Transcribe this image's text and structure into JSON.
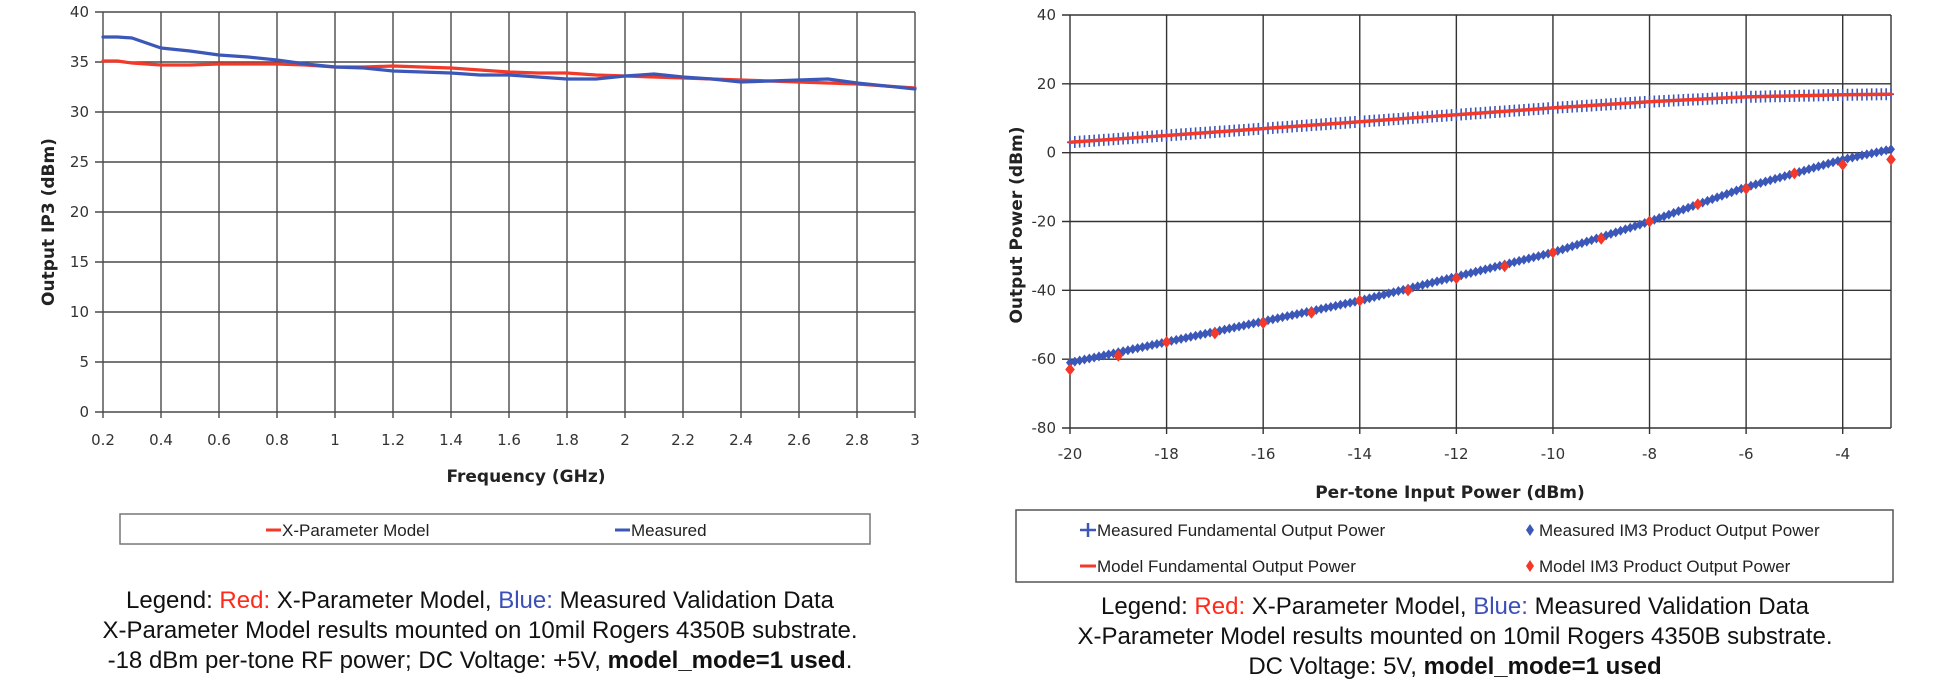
{
  "colors": {
    "model_red": "#f2392a",
    "measured_blue": "#3b57b8",
    "grid": "#444444"
  },
  "chart_data": [
    {
      "type": "line",
      "title": "",
      "xlabel": "Frequency (GHz)",
      "ylabel": "Output IP3 (dBm)",
      "xlim": [
        0.2,
        3
      ],
      "ylim": [
        0,
        40
      ],
      "grid": true,
      "xticks": [
        0.2,
        0.4,
        0.6,
        0.8,
        1,
        1.2,
        1.4,
        1.6,
        1.8,
        2,
        2.2,
        2.4,
        2.6,
        2.8,
        3
      ],
      "xtick_labels": [
        "0.2",
        "0.4",
        "0.6",
        "0.8",
        "1",
        "1.2",
        "1.4",
        "1.6",
        "1.8",
        "2",
        "2.2",
        "2.4",
        "2.6",
        "2.8",
        "3"
      ],
      "yticks": [
        0,
        5,
        10,
        15,
        20,
        25,
        30,
        35,
        40
      ],
      "ytick_labels": [
        "0",
        "5",
        "10",
        "15",
        "20",
        "25",
        "30",
        "35",
        "40"
      ],
      "legend_position": "bottom",
      "series": [
        {
          "name": "X-Parameter Model",
          "color": "#f2392a",
          "x": [
            0.2,
            0.25,
            0.3,
            0.4,
            0.5,
            0.6,
            0.7,
            0.8,
            0.9,
            1.0,
            1.1,
            1.2,
            1.3,
            1.4,
            1.5,
            1.6,
            1.7,
            1.8,
            1.9,
            2.0,
            2.1,
            2.2,
            2.3,
            2.4,
            2.5,
            2.6,
            2.7,
            2.8,
            2.9,
            3.0
          ],
          "y": [
            35.1,
            35.1,
            34.9,
            34.7,
            34.7,
            34.8,
            34.8,
            34.8,
            34.7,
            34.5,
            34.5,
            34.6,
            34.5,
            34.4,
            34.2,
            34.0,
            33.9,
            33.9,
            33.7,
            33.6,
            33.5,
            33.4,
            33.3,
            33.2,
            33.1,
            33.0,
            32.9,
            32.8,
            32.6,
            32.4
          ]
        },
        {
          "name": "Measured",
          "color": "#3b57b8",
          "x": [
            0.2,
            0.25,
            0.3,
            0.35,
            0.4,
            0.5,
            0.6,
            0.7,
            0.8,
            0.9,
            1.0,
            1.1,
            1.2,
            1.3,
            1.4,
            1.5,
            1.6,
            1.7,
            1.8,
            1.9,
            2.0,
            2.1,
            2.2,
            2.3,
            2.4,
            2.5,
            2.6,
            2.7,
            2.8,
            2.9,
            3.0
          ],
          "y": [
            37.5,
            37.5,
            37.4,
            36.9,
            36.4,
            36.1,
            35.7,
            35.5,
            35.2,
            34.8,
            34.5,
            34.4,
            34.1,
            34.0,
            33.9,
            33.7,
            33.7,
            33.5,
            33.3,
            33.3,
            33.6,
            33.8,
            33.5,
            33.3,
            33.0,
            33.1,
            33.2,
            33.3,
            32.9,
            32.6,
            32.3
          ]
        }
      ]
    },
    {
      "type": "scatter",
      "title": "",
      "xlabel": "Per-tone Input Power (dBm)",
      "ylabel": "Output Power (dBm)",
      "xlim": [
        -20,
        -3
      ],
      "ylim": [
        -80,
        40
      ],
      "grid": true,
      "xticks": [
        -20,
        -18,
        -16,
        -14,
        -12,
        -10,
        -8,
        -6,
        -4
      ],
      "xtick_labels": [
        "-20",
        "-18",
        "-16",
        "-14",
        "-12",
        "-10",
        "-8",
        "-6",
        "-4"
      ],
      "yticks": [
        -80,
        -60,
        -40,
        -20,
        0,
        20,
        40
      ],
      "ytick_labels": [
        "-80",
        "-60",
        "-40",
        "-20",
        "0",
        "20",
        "40"
      ],
      "legend_position": "bottom",
      "series": [
        {
          "name": "Measured Fundamental Output Power",
          "color": "#3b57b8",
          "marker": "plus",
          "x_range": [
            -20,
            -3
          ],
          "x_step": 0.1,
          "y_anchors": {
            "x": [
              -20,
              -18,
              -16,
              -14,
              -12,
              -10,
              -8,
              -6,
              -4,
              -3
            ],
            "y": [
              3.0,
              5.0,
              7.0,
              9.0,
              11.0,
              13.0,
              14.8,
              16.2,
              16.8,
              17.0
            ]
          }
        },
        {
          "name": "Model Fundamental Output Power",
          "color": "#f2392a",
          "marker": "line",
          "x": [
            -20,
            -18,
            -16,
            -14,
            -12,
            -10,
            -8,
            -6,
            -4,
            -3
          ],
          "y": [
            3.0,
            5.0,
            7.0,
            9.0,
            11.0,
            13.0,
            14.8,
            16.2,
            16.8,
            17.0
          ]
        },
        {
          "name": "Measured IM3 Product Output Power",
          "color": "#3b57b8",
          "marker": "diamond",
          "x_range": [
            -20,
            -3
          ],
          "x_step": 0.1,
          "y_anchors": {
            "x": [
              -20,
              -18,
              -16,
              -14,
              -12,
              -10,
              -8,
              -6,
              -4,
              -3
            ],
            "y": [
              -61,
              -55,
              -49,
              -43,
              -36,
              -29,
              -20,
              -10,
              -2,
              1
            ]
          }
        },
        {
          "name": "Model IM3 Product Output Power",
          "color": "#f2392a",
          "marker": "diamond",
          "x": [
            -20,
            -19,
            -18,
            -17,
            -16,
            -15,
            -14,
            -13,
            -12,
            -11,
            -10,
            -9,
            -8,
            -7,
            -6,
            -5,
            -4,
            -3
          ],
          "y": [
            -63,
            -59,
            -55,
            -52.5,
            -49.5,
            -46.5,
            -43,
            -40,
            -36.5,
            -33,
            -29,
            -25,
            -20,
            -15,
            -10.5,
            -6,
            -3.5,
            -2
          ]
        }
      ]
    }
  ],
  "left_legend": {
    "items": [
      "X-Parameter Model",
      "Measured"
    ]
  },
  "right_legend": {
    "items": [
      "Measured Fundamental Output Power",
      "Measured IM3 Product Output Power",
      "Model Fundamental Output Power",
      "Model IM3 Product Output Power"
    ]
  },
  "left_caption": {
    "line1_prefix": "Legend: ",
    "red_label": "Red:",
    "line1_mid": " X-Parameter Model, ",
    "blue_label": "Blue:",
    "line1_suffix": " Measured Validation Data",
    "line2": "X-Parameter Model results mounted on 10mil Rogers 4350B substrate.",
    "line3_plain": "-18 dBm per-tone RF power; DC Voltage: +5V, ",
    "line3_bold": "model_mode=1 used",
    "line3_end": "."
  },
  "right_caption": {
    "line1_prefix": "Legend: ",
    "red_label": "Red:",
    "line1_mid": " X-Parameter Model, ",
    "blue_label": "Blue:",
    "line1_suffix": " Measured Validation Data",
    "line2": "X-Parameter Model results mounted on 10mil Rogers 4350B substrate.",
    "line3_plain": "DC Voltage: 5V, ",
    "line3_bold": "model_mode=1 used"
  }
}
